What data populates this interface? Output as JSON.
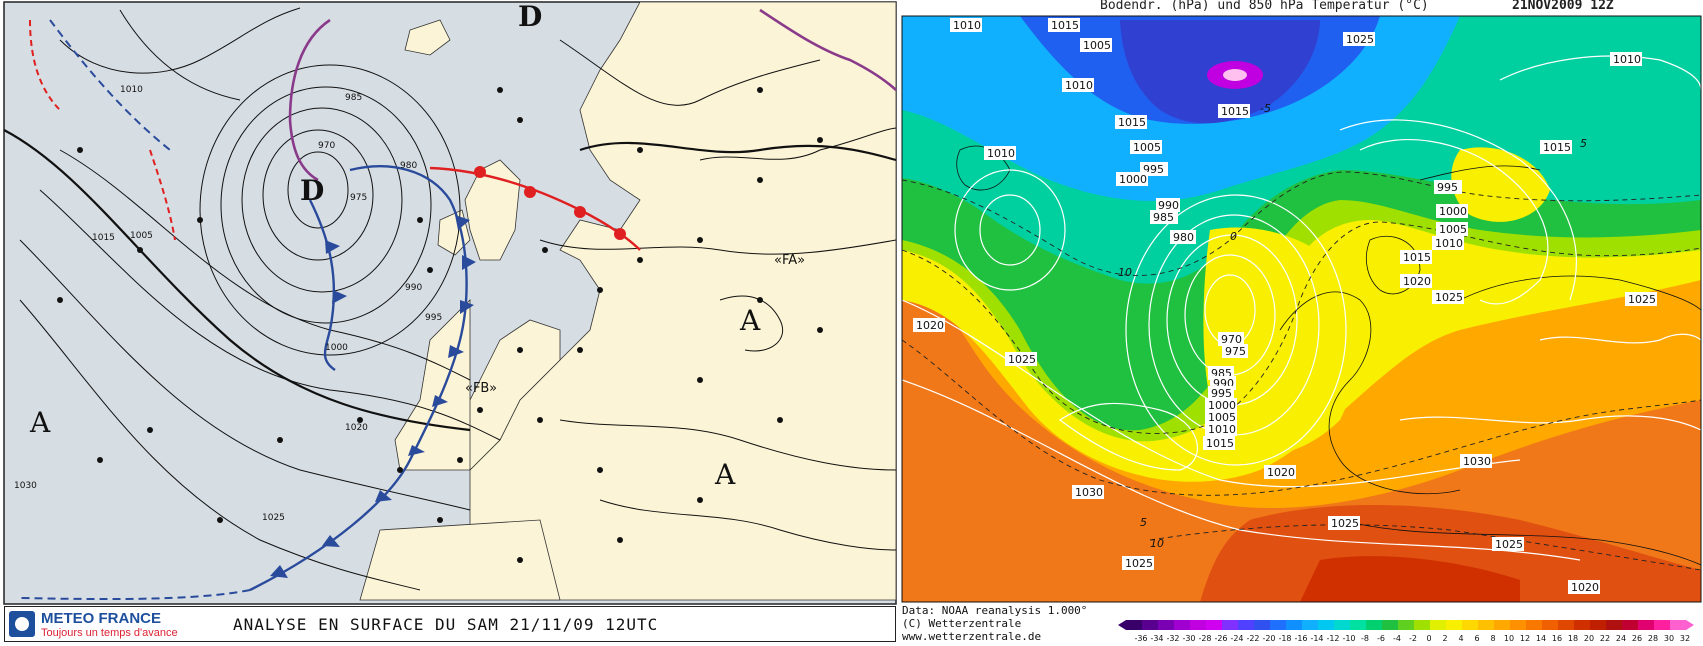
{
  "left_panel": {
    "footer": {
      "brand": "METEO FRANCE",
      "tagline": "Toujours un temps d'avance",
      "title": "ANALYSE EN SURFACE DU SAM  21/11/09  12UTC"
    },
    "pressure_systems": [
      {
        "label": "D",
        "type": "low"
      },
      {
        "label": "D",
        "type": "low"
      },
      {
        "label": "A",
        "type": "high"
      },
      {
        "label": "A",
        "type": "high"
      },
      {
        "label": "A",
        "type": "high"
      }
    ],
    "front_labels": [
      "«FB»",
      "«FA»"
    ],
    "isobar_labels": [
      "970",
      "975",
      "980",
      "985",
      "990",
      "995",
      "1000",
      "1005",
      "1010",
      "1015",
      "1020",
      "1025",
      "1030"
    ]
  },
  "right_panel": {
    "title": "Bodendr. (hPa) und 850 hPa Temperatur (°C)",
    "date": "21NOV2009 12Z",
    "credits": [
      "Data: NOAA reanalysis 1.000°",
      "(C) Wetterzentrale",
      "www.wetterzentrale.de"
    ],
    "colorbar_ticks": [
      "-36",
      "-34",
      "-32",
      "-30",
      "-28",
      "-26",
      "-24",
      "-22",
      "-20",
      "-18",
      "-16",
      "-14",
      "-12",
      "-10",
      "-8",
      "-6",
      "-4",
      "-2",
      "0",
      "2",
      "4",
      "6",
      "8",
      "10",
      "12",
      "14",
      "16",
      "18",
      "20",
      "22",
      "24",
      "26",
      "28",
      "30",
      "32"
    ],
    "colorbar_colors": [
      "#3a006a",
      "#5a0090",
      "#7a00b4",
      "#a000d0",
      "#c000e0",
      "#d000f0",
      "#8030ff",
      "#5040ff",
      "#3050f0",
      "#2070ff",
      "#1090ff",
      "#10b0ff",
      "#00c8f0",
      "#00d8d0",
      "#00e0a0",
      "#00d070",
      "#20c040",
      "#60d020",
      "#a0e000",
      "#e0f000",
      "#f8f000",
      "#ffd800",
      "#ffc000",
      "#ffa800",
      "#ff9000",
      "#f87800",
      "#f06000",
      "#e04800",
      "#d03000",
      "#c02000",
      "#b01010",
      "#c00030",
      "#e00070",
      "#ff20a0",
      "#ff60d0"
    ],
    "isobar_labels": [
      "1010",
      "1015",
      "1010",
      "1005",
      "1025",
      "1015",
      "1010",
      "1015",
      "1005",
      "995",
      "990",
      "985",
      "980",
      "1000",
      "970",
      "975",
      "985",
      "990",
      "995",
      "1000",
      "1005",
      "1010",
      "1015",
      "1020",
      "1025",
      "1030",
      "1025",
      "1020",
      "1030",
      "1025",
      "1025",
      "1020",
      "1025",
      "1015",
      "1010",
      "1005",
      "1000",
      "995",
      "1015",
      "1010",
      "1020",
      "1025"
    ],
    "temperature_labels": [
      "-5",
      "0",
      "5",
      "10",
      "5",
      "10"
    ]
  }
}
